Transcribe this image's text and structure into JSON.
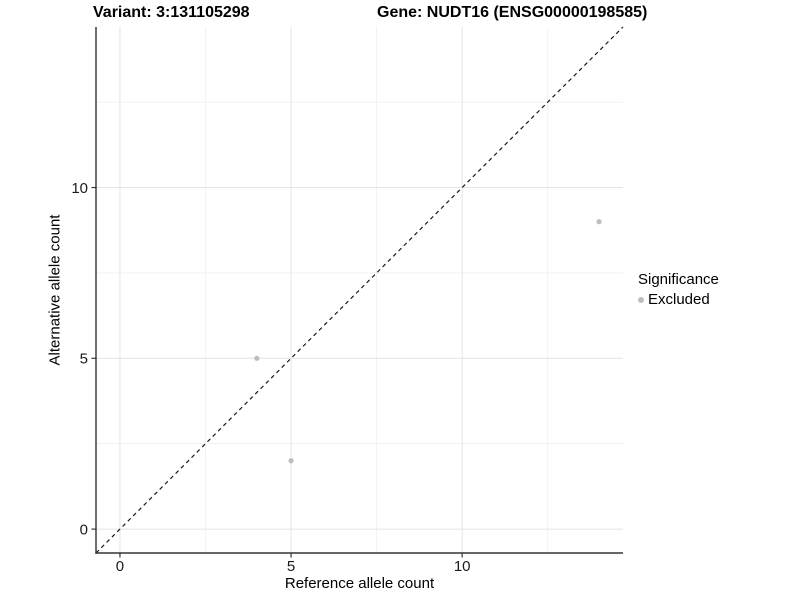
{
  "header": {
    "variant_title": "Variant: 3:131105298",
    "gene_title": "Gene: NUDT16 (ENSG00000198585)"
  },
  "legend": {
    "title": "Significance",
    "items": [
      {
        "label": "Excluded",
        "color": "#bdbdbd"
      }
    ]
  },
  "colors": {
    "point": "#bdbdbd",
    "grid_major": "#e4e4e4",
    "grid_minor": "#efefef",
    "axis_line": "#333333",
    "tick_mark": "#333333",
    "tick_label": "#1a1a1a",
    "identity_line": "#1a1a1a",
    "background": "#ffffff"
  },
  "chart_data": {
    "type": "scatter",
    "title": "Variant: 3:131105298  |  Gene: NUDT16 (ENSG00000198585)",
    "xlabel": "Reference allele count",
    "ylabel": "Alternative allele count",
    "xlim": [
      -0.7,
      14.7
    ],
    "ylim": [
      -0.7,
      14.7
    ],
    "major_ticks": [
      0,
      5,
      10
    ],
    "minor_ticks": [
      2.5,
      7.5,
      12.5
    ],
    "grid": true,
    "legend_position": "right",
    "identity_line": {
      "style": "dashed",
      "from": [
        -0.7,
        -0.7
      ],
      "to": [
        14.7,
        14.7
      ]
    },
    "series": [
      {
        "name": "Excluded",
        "color": "#bdbdbd",
        "points": [
          [
            4,
            5
          ],
          [
            5,
            2
          ],
          [
            14,
            9
          ]
        ]
      }
    ]
  }
}
